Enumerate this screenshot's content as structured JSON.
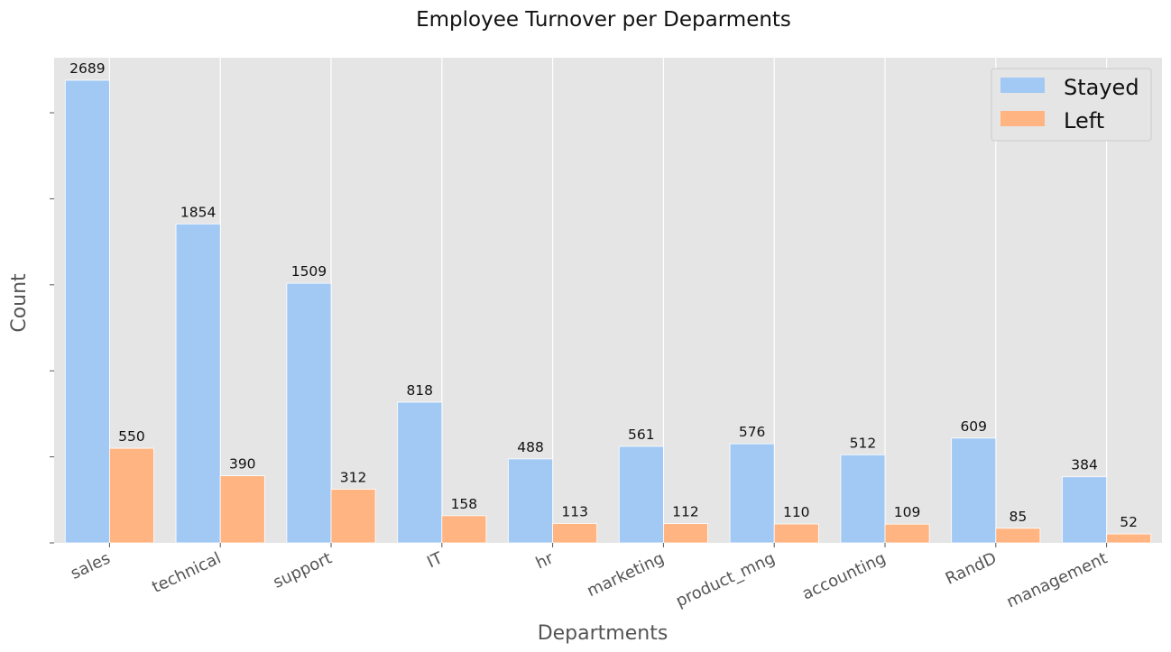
{
  "chart_data": {
    "type": "bar",
    "title": "Employee Turnover per Deparments",
    "xlabel": "Departments",
    "ylabel": "Count",
    "categories": [
      "sales",
      "technical",
      "support",
      "IT",
      "hr",
      "marketing",
      "product_mng",
      "accounting",
      "RandD",
      "management"
    ],
    "series": [
      {
        "name": "Stayed",
        "values": [
          2689,
          1854,
          1509,
          818,
          488,
          561,
          576,
          512,
          609,
          384
        ],
        "color": "#a1c9f4"
      },
      {
        "name": "Left",
        "values": [
          550,
          390,
          312,
          158,
          113,
          112,
          110,
          109,
          85,
          52
        ],
        "color": "#ffb482"
      }
    ],
    "ylim": [
      0,
      2820
    ],
    "y_ticks": [
      0,
      500,
      1000,
      1500,
      2000,
      2500
    ],
    "y_tick_labels_visible": false,
    "grid": true,
    "plot_background": "#e5e5e5",
    "grid_color": "#ffffff",
    "legend": {
      "placement": "top-right"
    }
  }
}
